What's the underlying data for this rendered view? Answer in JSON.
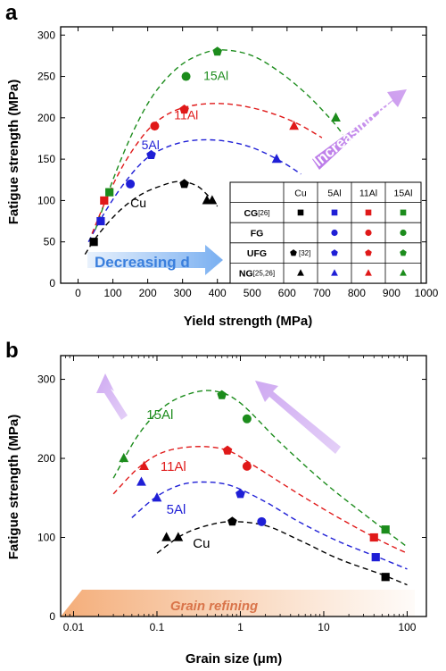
{
  "colors": {
    "Cu": "#000000",
    "5Al": "#1f1fd6",
    "11Al": "#e01919",
    "15Al": "#1c8c1c",
    "increasing_arrow": "#b36ae6",
    "decreasing_arrow": "#6aa6ef",
    "refining_arrow": "#f3b27f"
  },
  "chart_data": [
    {
      "panel": "a",
      "type": "scatter",
      "xlabel": "Yield strength (MPa)",
      "ylabel": "Fatigue strength (MPa)",
      "xlim": [
        -50,
        1000
      ],
      "ylim": [
        0,
        310
      ],
      "xticks": [
        "0",
        "100",
        "200",
        "300",
        "400",
        "500",
        "600",
        "700",
        "800",
        "900",
        "1000"
      ],
      "yticks": [
        "0",
        "50",
        "100",
        "150",
        "200",
        "250",
        "300"
      ],
      "series": [
        {
          "name": "Cu",
          "color_key": "Cu",
          "points": [
            {
              "x": 45,
              "y": 50,
              "marker": "square"
            },
            {
              "x": 305,
              "y": 120,
              "marker": "pentagon"
            },
            {
              "x": 370,
              "y": 100,
              "marker": "triangle"
            },
            {
              "x": 385,
              "y": 100,
              "marker": "triangle"
            }
          ]
        },
        {
          "name": "5Al",
          "color_key": "5Al",
          "points": [
            {
              "x": 65,
              "y": 75,
              "marker": "square"
            },
            {
              "x": 150,
              "y": 120,
              "marker": "circle"
            },
            {
              "x": 210,
              "y": 155,
              "marker": "pentagon"
            },
            {
              "x": 570,
              "y": 150,
              "marker": "triangle"
            }
          ]
        },
        {
          "name": "11Al",
          "color_key": "11Al",
          "points": [
            {
              "x": 75,
              "y": 100,
              "marker": "square"
            },
            {
              "x": 220,
              "y": 190,
              "marker": "circle"
            },
            {
              "x": 305,
              "y": 210,
              "marker": "pentagon"
            },
            {
              "x": 620,
              "y": 190,
              "marker": "triangle"
            }
          ]
        },
        {
          "name": "15Al",
          "color_key": "15Al",
          "points": [
            {
              "x": 90,
              "y": 110,
              "marker": "square"
            },
            {
              "x": 310,
              "y": 250,
              "marker": "circle"
            },
            {
              "x": 400,
              "y": 280,
              "marker": "pentagon"
            },
            {
              "x": 740,
              "y": 200,
              "marker": "triangle"
            }
          ]
        }
      ],
      "fit_curves": [
        {
          "color_key": "Cu",
          "label": "Cu",
          "points": [
            [
              20,
              35
            ],
            [
              60,
              60
            ],
            [
              120,
              88
            ],
            [
              180,
              107
            ],
            [
              240,
              118
            ],
            [
              290,
              123
            ],
            [
              340,
              118
            ],
            [
              375,
              105
            ],
            [
              400,
              93
            ]
          ]
        },
        {
          "color_key": "5Al",
          "label": "5Al",
          "points": [
            [
              30,
              50
            ],
            [
              80,
              88
            ],
            [
              140,
              125
            ],
            [
              200,
              152
            ],
            [
              270,
              167
            ],
            [
              340,
              173
            ],
            [
              420,
              172
            ],
            [
              500,
              164
            ],
            [
              580,
              148
            ],
            [
              640,
              132
            ]
          ]
        },
        {
          "color_key": "11Al",
          "label": "11Al",
          "points": [
            [
              40,
              60
            ],
            [
              90,
              110
            ],
            [
              140,
              150
            ],
            [
              200,
              185
            ],
            [
              260,
              205
            ],
            [
              330,
              215
            ],
            [
              420,
              217
            ],
            [
              520,
              210
            ],
            [
              620,
              195
            ],
            [
              700,
              176
            ]
          ]
        },
        {
          "color_key": "15Al",
          "label": "15Al",
          "points": [
            [
              50,
              65
            ],
            [
              100,
              125
            ],
            [
              160,
              185
            ],
            [
              220,
              230
            ],
            [
              290,
              262
            ],
            [
              360,
              278
            ],
            [
              420,
              282
            ],
            [
              500,
              275
            ],
            [
              580,
              255
            ],
            [
              660,
              227
            ],
            [
              730,
              196
            ],
            [
              760,
              180
            ]
          ]
        }
      ],
      "annotations": {
        "increasing": "Increasing Al",
        "decreasing": "Decreasing d"
      },
      "legend_table": {
        "header": [
          "",
          "Cu",
          "5Al",
          "11Al",
          "15Al"
        ],
        "rows": [
          {
            "label": "CG",
            "ref": "[26]",
            "marker": "square",
            "cells": [
              true,
              true,
              true,
              true
            ]
          },
          {
            "label": "FG",
            "ref": "",
            "marker": "circle",
            "cells": [
              false,
              true,
              true,
              true
            ]
          },
          {
            "label": "UFG",
            "ref": "",
            "marker": "pentagon",
            "cells": [
              true,
              true,
              true,
              true
            ],
            "cu_ref": "[32]"
          },
          {
            "label": "NG",
            "ref": "[25,26]",
            "marker": "triangle",
            "cells": [
              true,
              true,
              true,
              true
            ]
          }
        ]
      }
    },
    {
      "panel": "b",
      "type": "scatter",
      "xscale": "log",
      "xlabel_main": "Grain size (",
      "xlabel_unit": "μm",
      "xlabel_end": ")",
      "ylabel": "Fatigue strength (MPa)",
      "xlim": [
        0.007,
        170
      ],
      "ylim": [
        0,
        330
      ],
      "xticks": [
        {
          "v": 0.01,
          "label": "0.01"
        },
        {
          "v": 0.1,
          "label": "0.1"
        },
        {
          "v": 1,
          "label": "1"
        },
        {
          "v": 10,
          "label": "10"
        },
        {
          "v": 100,
          "label": "100"
        }
      ],
      "yticks": [
        "0",
        "100",
        "200",
        "300"
      ],
      "series": [
        {
          "name": "Cu",
          "color_key": "Cu",
          "points": [
            {
              "x": 0.13,
              "y": 100,
              "marker": "triangle"
            },
            {
              "x": 0.18,
              "y": 100,
              "marker": "triangle"
            },
            {
              "x": 0.8,
              "y": 120,
              "marker": "pentagon"
            },
            {
              "x": 55,
              "y": 50,
              "marker": "square"
            }
          ]
        },
        {
          "name": "5Al",
          "color_key": "5Al",
          "points": [
            {
              "x": 0.065,
              "y": 170,
              "marker": "triangle"
            },
            {
              "x": 0.1,
              "y": 150,
              "marker": "triangle"
            },
            {
              "x": 1.0,
              "y": 155,
              "marker": "pentagon"
            },
            {
              "x": 1.8,
              "y": 120,
              "marker": "circle"
            },
            {
              "x": 42,
              "y": 75,
              "marker": "square"
            }
          ]
        },
        {
          "name": "11Al",
          "color_key": "11Al",
          "points": [
            {
              "x": 0.07,
              "y": 190,
              "marker": "triangle"
            },
            {
              "x": 0.7,
              "y": 210,
              "marker": "pentagon"
            },
            {
              "x": 1.2,
              "y": 190,
              "marker": "circle"
            },
            {
              "x": 40,
              "y": 100,
              "marker": "square"
            }
          ]
        },
        {
          "name": "15Al",
          "color_key": "15Al",
          "points": [
            {
              "x": 0.04,
              "y": 200,
              "marker": "triangle"
            },
            {
              "x": 0.6,
              "y": 280,
              "marker": "pentagon"
            },
            {
              "x": 1.2,
              "y": 250,
              "marker": "circle"
            },
            {
              "x": 55,
              "y": 110,
              "marker": "square"
            }
          ]
        }
      ],
      "fit_curves": [
        {
          "color_key": "Cu",
          "label": "Cu",
          "points": [
            [
              0.1,
              80
            ],
            [
              0.2,
              103
            ],
            [
              0.4,
              115
            ],
            [
              0.8,
              120
            ],
            [
              2,
              115
            ],
            [
              5,
              97
            ],
            [
              15,
              73
            ],
            [
              50,
              53
            ],
            [
              100,
              40
            ]
          ]
        },
        {
          "color_key": "5Al",
          "label": "5Al",
          "points": [
            [
              0.05,
              125
            ],
            [
              0.1,
              152
            ],
            [
              0.2,
              167
            ],
            [
              0.4,
              170
            ],
            [
              0.8,
              165
            ],
            [
              2,
              145
            ],
            [
              5,
              120
            ],
            [
              15,
              95
            ],
            [
              50,
              73
            ],
            [
              100,
              60
            ]
          ]
        },
        {
          "color_key": "11Al",
          "label": "11Al",
          "points": [
            [
              0.03,
              155
            ],
            [
              0.06,
              188
            ],
            [
              0.12,
              208
            ],
            [
              0.3,
              215
            ],
            [
              0.7,
              210
            ],
            [
              1.5,
              190
            ],
            [
              5,
              155
            ],
            [
              15,
              125
            ],
            [
              50,
              95
            ],
            [
              100,
              80
            ]
          ]
        },
        {
          "color_key": "15Al",
          "label": "15Al",
          "points": [
            [
              0.03,
              175
            ],
            [
              0.06,
              230
            ],
            [
              0.12,
              265
            ],
            [
              0.25,
              282
            ],
            [
              0.5,
              285
            ],
            [
              1,
              270
            ],
            [
              3,
              220
            ],
            [
              10,
              170
            ],
            [
              30,
              130
            ],
            [
              100,
              88
            ]
          ]
        }
      ],
      "annotations": {
        "refining": "Grain refining"
      }
    }
  ],
  "labels": {
    "panel_a": "a",
    "panel_b": "b"
  }
}
